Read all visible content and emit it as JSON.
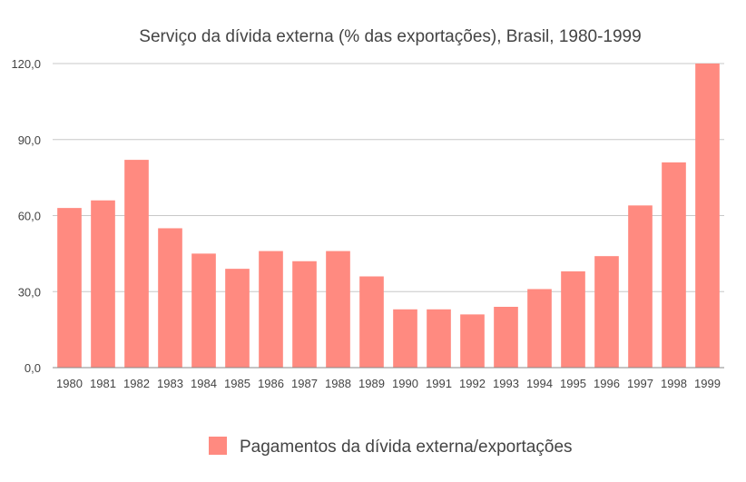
{
  "chart_data": {
    "type": "bar",
    "title": "Serviço da dívida externa (% das exportações), Brasil, 1980-1999",
    "categories": [
      "1980",
      "1981",
      "1982",
      "1983",
      "1984",
      "1985",
      "1986",
      "1987",
      "1988",
      "1989",
      "1990",
      "1991",
      "1992",
      "1993",
      "1994",
      "1995",
      "1996",
      "1997",
      "1998",
      "1999"
    ],
    "series": [
      {
        "name": "Pagamentos da dívida externa/exportações",
        "values": [
          63,
          66,
          82,
          55,
          45,
          39,
          46,
          42,
          46,
          36,
          23,
          23,
          21,
          24,
          31,
          38,
          44,
          64,
          81,
          120
        ],
        "color": "#ff8a80"
      }
    ],
    "ylim": [
      0,
      120
    ],
    "yticks": [
      0,
      30,
      60,
      90,
      120
    ],
    "ytick_labels": [
      "0,0",
      "30,0",
      "60,0",
      "90,0",
      "120,0"
    ],
    "grid": true,
    "legend_position": "bottom"
  }
}
